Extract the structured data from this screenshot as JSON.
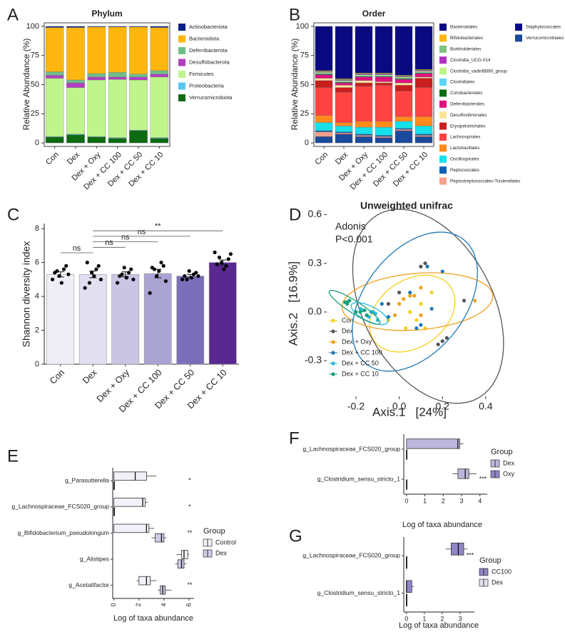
{
  "chart_data": [
    {
      "type": "bar",
      "label": "A",
      "title": "Phylum",
      "stacked": true,
      "ylabel": "Relative Abundance (%)",
      "categories": [
        "Con",
        "Dex",
        "Dex + Oxy",
        "Dex + CC 100",
        "Dex + CC 50",
        "Dex + CC 10"
      ],
      "ylim": [
        -3,
        103
      ],
      "yticks": [
        0,
        25,
        50,
        75,
        100
      ],
      "series": [
        {
          "name": "Actinobacteriota",
          "color": "#0b1f8a",
          "values": [
            1,
            1,
            0.5,
            0.5,
            0.5,
            1
          ]
        },
        {
          "name": "Bacteroidota",
          "color": "#ffb70f",
          "values": [
            38,
            45,
            40,
            39,
            40.5,
            37
          ]
        },
        {
          "name": "Deferribacterota",
          "color": "#6fbf8a",
          "values": [
            3,
            2.5,
            3,
            4,
            2.5,
            3
          ]
        },
        {
          "name": "Desulfobacterota",
          "color": "#b23fc2",
          "values": [
            2.5,
            4,
            2.5,
            2,
            2.5,
            2.5
          ]
        },
        {
          "name": "Firmicutes",
          "color": "#bff58c",
          "values": [
            50,
            40,
            48.5,
            50,
            43,
            52
          ]
        },
        {
          "name": "Proteobacteria",
          "color": "#56c8f0",
          "values": [
            0.5,
            0.5,
            0.5,
            0.5,
            0.5,
            0.5
          ]
        },
        {
          "name": "Verrucomicrobiota",
          "color": "#0e6b12",
          "values": [
            5,
            7,
            5,
            4,
            10.5,
            4
          ]
        }
      ]
    },
    {
      "type": "bar",
      "label": "B",
      "title": "Order",
      "stacked": true,
      "ylabel": "Relative Abundance (%)",
      "categories": [
        "Con",
        "Dex",
        "Dex + Oxy",
        "Dex + CC 100",
        "Dex + CC 50",
        "Dex + CC 10"
      ],
      "ylim": [
        -3,
        103
      ],
      "yticks": [
        0,
        25,
        50,
        75,
        100
      ],
      "series": [
        {
          "name": "Bacteroidales",
          "color": "#0a0a80",
          "values": [
            38,
            45,
            40,
            40,
            42,
            37
          ]
        },
        {
          "name": "Bifidobacteriales",
          "color": "#ffb70f",
          "values": [
            0.5,
            0.5,
            0.5,
            0.5,
            0.5,
            0.5
          ]
        },
        {
          "name": "Burkholderiales",
          "color": "#7fbf7f",
          "values": [
            0.5,
            0.5,
            0.5,
            0.5,
            0.5,
            0.5
          ]
        },
        {
          "name": "Clostridia_UCG-014",
          "color": "#b030c0",
          "values": [
            0.5,
            0.5,
            0.5,
            0.5,
            0.5,
            0.5
          ]
        },
        {
          "name": "Clostridia_vadinBB60_group",
          "color": "#bdf58a",
          "values": [
            1,
            1,
            1,
            1,
            1,
            1
          ]
        },
        {
          "name": "Clostridiales",
          "color": "#5cd3f5",
          "values": [
            0.5,
            0.5,
            0.5,
            0.5,
            0.5,
            0.5
          ]
        },
        {
          "name": "Coriobacteriales",
          "color": "#0a6a14",
          "values": [
            0.5,
            0.5,
            0.5,
            0.5,
            0.5,
            0.5
          ]
        },
        {
          "name": "Deferribacterales",
          "color": "#e0107f",
          "values": [
            3,
            2,
            3,
            4,
            3,
            3
          ]
        },
        {
          "name": "Desulfovibrionales",
          "color": "#fbe39a",
          "values": [
            2,
            2,
            2,
            1,
            2,
            1
          ]
        },
        {
          "name": "Erysipelotrichales",
          "color": "#c81e1e",
          "values": [
            6,
            4,
            3,
            2,
            5,
            8
          ]
        },
        {
          "name": "Lachnospirales",
          "color": "#ff4242",
          "values": [
            24,
            26,
            30,
            31,
            22,
            25
          ]
        },
        {
          "name": "Lactobacillales",
          "color": "#ff8c1a",
          "values": [
            6,
            3,
            5,
            5,
            4,
            8
          ]
        },
        {
          "name": "Oscillospirales",
          "color": "#17e0ea",
          "values": [
            7,
            5,
            6,
            7,
            6,
            7
          ]
        },
        {
          "name": "Peptococcales",
          "color": "#0e60b0",
          "values": [
            1,
            1,
            1,
            1,
            1,
            1
          ]
        },
        {
          "name": "Peptostreptococcales-Tissierellales",
          "color": "#f4a08c",
          "values": [
            4,
            1,
            1,
            1,
            1,
            1
          ]
        },
        {
          "name": "Staphylococcales",
          "color": "#0a0a8a",
          "values": [
            0.5,
            0.5,
            0.5,
            0.5,
            0.5,
            0.5
          ]
        },
        {
          "name": "Verrucomicrobiales",
          "color": "#1b4a9c",
          "values": [
            5,
            7,
            5,
            4,
            10,
            5
          ]
        }
      ]
    },
    {
      "type": "bar",
      "label": "C",
      "ylabel": "Shannon diversity index",
      "categories": [
        "Con",
        "Dex",
        "Dex + Oxy",
        "Dex + CC 100",
        "Dex + CC 50",
        "Dex + CC 10"
      ],
      "colors": [
        "#efeef6",
        "#e1dff0",
        "#c9c5e3",
        "#aaa4d3",
        "#7a6fb8",
        "#5a2891"
      ],
      "ylim": [
        0,
        8.3
      ],
      "yticks": [
        0,
        2,
        4,
        6,
        8
      ],
      "values": [
        5.3,
        5.3,
        5.3,
        5.35,
        5.2,
        6.0
      ],
      "errors": [
        0.15,
        0.2,
        0.15,
        0.25,
        0.1,
        0.15
      ],
      "points": [
        [
          5.0,
          5.3,
          5.8,
          5.6,
          4.8,
          5.2,
          5.5,
          5.4
        ],
        [
          4.5,
          5.0,
          5.8,
          5.6,
          5.2,
          5.4,
          4.8,
          6.0
        ],
        [
          4.8,
          5.0,
          5.6,
          5.4,
          5.1,
          5.7,
          5.3,
          5.2
        ],
        [
          4.2,
          4.9,
          5.8,
          6.0,
          5.5,
          5.2,
          5.6,
          5.7
        ],
        [
          5.0,
          5.2,
          5.4,
          5.3,
          5.1,
          5.5,
          5.0,
          5.2
        ],
        [
          6.6,
          6.5,
          6.2,
          5.8,
          5.6,
          6.0,
          6.3,
          5.9
        ]
      ],
      "comparisons": [
        {
          "groups": [
            "Con",
            "Dex"
          ],
          "label": "ns"
        },
        {
          "groups": [
            "Dex",
            "Dex + Oxy"
          ],
          "label": "ns"
        },
        {
          "groups": [
            "Dex",
            "Dex + CC 100"
          ],
          "label": "ns"
        },
        {
          "groups": [
            "Dex",
            "Dex + CC 50"
          ],
          "label": "ns"
        },
        {
          "groups": [
            "Dex",
            "Dex + CC 10"
          ],
          "label": "**"
        }
      ]
    },
    {
      "type": "scatter",
      "label": "D",
      "title": "Unweighted unifrac",
      "annotations": [
        "Adonis",
        "P<0.001"
      ],
      "xlabel": "Axis.1   [24%]",
      "ylabel": "Axis.2   [16.9%]",
      "xlim": [
        -0.335,
        0.43
      ],
      "ylim": [
        -0.52,
        0.62
      ],
      "xticks": [
        -0.2,
        {
          "value": 0,
          "label": "0.0"
        },
        0.2,
        0.4
      ],
      "yticks": [
        -0.3,
        {
          "value": 0,
          "label": "0.0"
        },
        0.3,
        0.6
      ],
      "series": [
        {
          "name": "Con",
          "color": "#f5cf1c",
          "x": [
            0.05,
            0.08,
            0.1,
            0.12,
            0.03,
            0.0,
            0.15,
            -0.05
          ],
          "y": [
            0.0,
            -0.05,
            0.05,
            -0.1,
            -0.1,
            0.05,
            0.12,
            -0.05
          ]
        },
        {
          "name": "Dex",
          "color": "#555555",
          "x": [
            0.2,
            0.12,
            0.0,
            0.18,
            -0.05,
            0.1,
            0.22,
            0.3
          ],
          "y": [
            -0.18,
            0.3,
            0.12,
            -0.2,
            0.05,
            0.28,
            -0.16,
            0.07
          ]
        },
        {
          "name": "Dex + Oxy",
          "color": "#eea21e",
          "x": [
            0.05,
            0.0,
            0.1,
            0.02,
            0.1,
            0.07,
            0.35,
            -0.02
          ],
          "y": [
            0.1,
            0.05,
            0.15,
            0.08,
            -0.02,
            0.1,
            0.07,
            -0.02
          ]
        },
        {
          "name": "Dex + CC 100",
          "color": "#1f78b4",
          "x": [
            -0.08,
            0.1,
            0.05,
            0.2,
            -0.05,
            0.15,
            0.13,
            0.08
          ],
          "y": [
            0.05,
            -0.08,
            0.12,
            0.25,
            -0.03,
            0.02,
            0.28,
            -0.1
          ]
        },
        {
          "name": "Dex + CC 50",
          "color": "#2bb8da",
          "x": [
            -0.15,
            -0.12,
            -0.18,
            -0.1,
            -0.14,
            -0.17,
            -0.11,
            -0.13
          ],
          "y": [
            -0.02,
            0.0,
            0.02,
            -0.05,
            -0.03,
            0.01,
            -0.01,
            0.0
          ]
        },
        {
          "name": "Dex + CC 10",
          "color": "#1a9e77",
          "x": [
            -0.24,
            -0.25,
            -0.23,
            -0.18,
            -0.15,
            -0.16,
            -0.2,
            -0.24
          ],
          "y": [
            0.06,
            0.06,
            0.07,
            0.0,
            -0.02,
            0.01,
            0.0,
            0.05
          ]
        }
      ]
    },
    {
      "type": "box",
      "label": "E",
      "xlabel": "Log of taxa abundance",
      "legend_title": "Group",
      "taxa": [
        "g_Parasutterella",
        "g_Lachnospiraceae_FCS020_group",
        "g_Bifidobacterium_pseudolongum",
        "g_Alistipes",
        "g_Acetatifactor"
      ],
      "significance": [
        "*",
        "*",
        "**",
        null,
        "**"
      ],
      "xlim": [
        -0.1,
        6.4
      ],
      "xticks": [
        0,
        2,
        4,
        6
      ],
      "series": [
        {
          "name": "Control",
          "color": "#f2f1f8",
          "boxes": [
            [
              0,
              0,
              1.7,
              2.6,
              3.4
            ],
            [
              0,
              0,
              2.3,
              2.5,
              2.7
            ],
            [
              0,
              0,
              2.6,
              2.8,
              3.2
            ],
            [
              5.0,
              5.4,
              5.6,
              5.9,
              6.0
            ],
            [
              1.8,
              2.0,
              2.6,
              2.9,
              3.4
            ]
          ]
        },
        {
          "name": "Dex",
          "color": "#cfcbe6",
          "boxes": [
            [
              0,
              0,
              0,
              0,
              0
            ],
            [
              0,
              0,
              0,
              0,
              0
            ],
            [
              3.0,
              3.3,
              3.8,
              4.0,
              4.2
            ],
            [
              4.9,
              5.1,
              5.4,
              5.6,
              5.8
            ],
            [
              3.5,
              3.7,
              3.9,
              4.1,
              4.6
            ]
          ]
        }
      ]
    },
    {
      "type": "box",
      "label": "F",
      "xlabel": "Log of taxa abundance",
      "legend_title": "Group",
      "taxa": [
        "g_Lachnospiraceae_FCS020_group",
        "g_Clostridium_sensu_stricto_1"
      ],
      "significance": [
        null,
        "***"
      ],
      "xlim": [
        -0.15,
        4.4
      ],
      "xticks": [
        0,
        1,
        2,
        3,
        4
      ],
      "series": [
        {
          "name": "Dex",
          "color": "#bbb6db",
          "boxes": [
            [
              0,
              0,
              2.8,
              2.9,
              3.1
            ],
            [
              2.5,
              2.8,
              3.2,
              3.4,
              3.8
            ]
          ]
        },
        {
          "name": "Oxy",
          "color": "#8e86c3",
          "boxes": [
            [
              0,
              0,
              0,
              0,
              0
            ],
            [
              0,
              0,
              0,
              0,
              0
            ]
          ]
        }
      ]
    },
    {
      "type": "box",
      "label": "G",
      "xlabel": "Log of taxa abundance",
      "legend_title": "Group",
      "taxa": [
        "g_Lachnospiraceae_FCS020_group",
        "g_Clostridium_sensu_stricto_1"
      ],
      "significance": [
        "***",
        null
      ],
      "xlim": [
        -0.15,
        3.8
      ],
      "xticks": [
        0,
        1,
        2,
        3
      ],
      "series": [
        {
          "name": "CC100",
          "color": "#8f86c6",
          "boxes": [
            [
              2.2,
              2.5,
              2.9,
              3.2,
              3.4
            ],
            [
              0,
              0,
              0,
              0.3,
              0.4
            ]
          ]
        },
        {
          "name": "Dex",
          "color": "#e3e0f0",
          "boxes": [
            [
              0,
              0,
              0,
              0,
              0
            ],
            [
              0,
              0,
              0,
              0,
              0
            ]
          ]
        }
      ]
    }
  ]
}
